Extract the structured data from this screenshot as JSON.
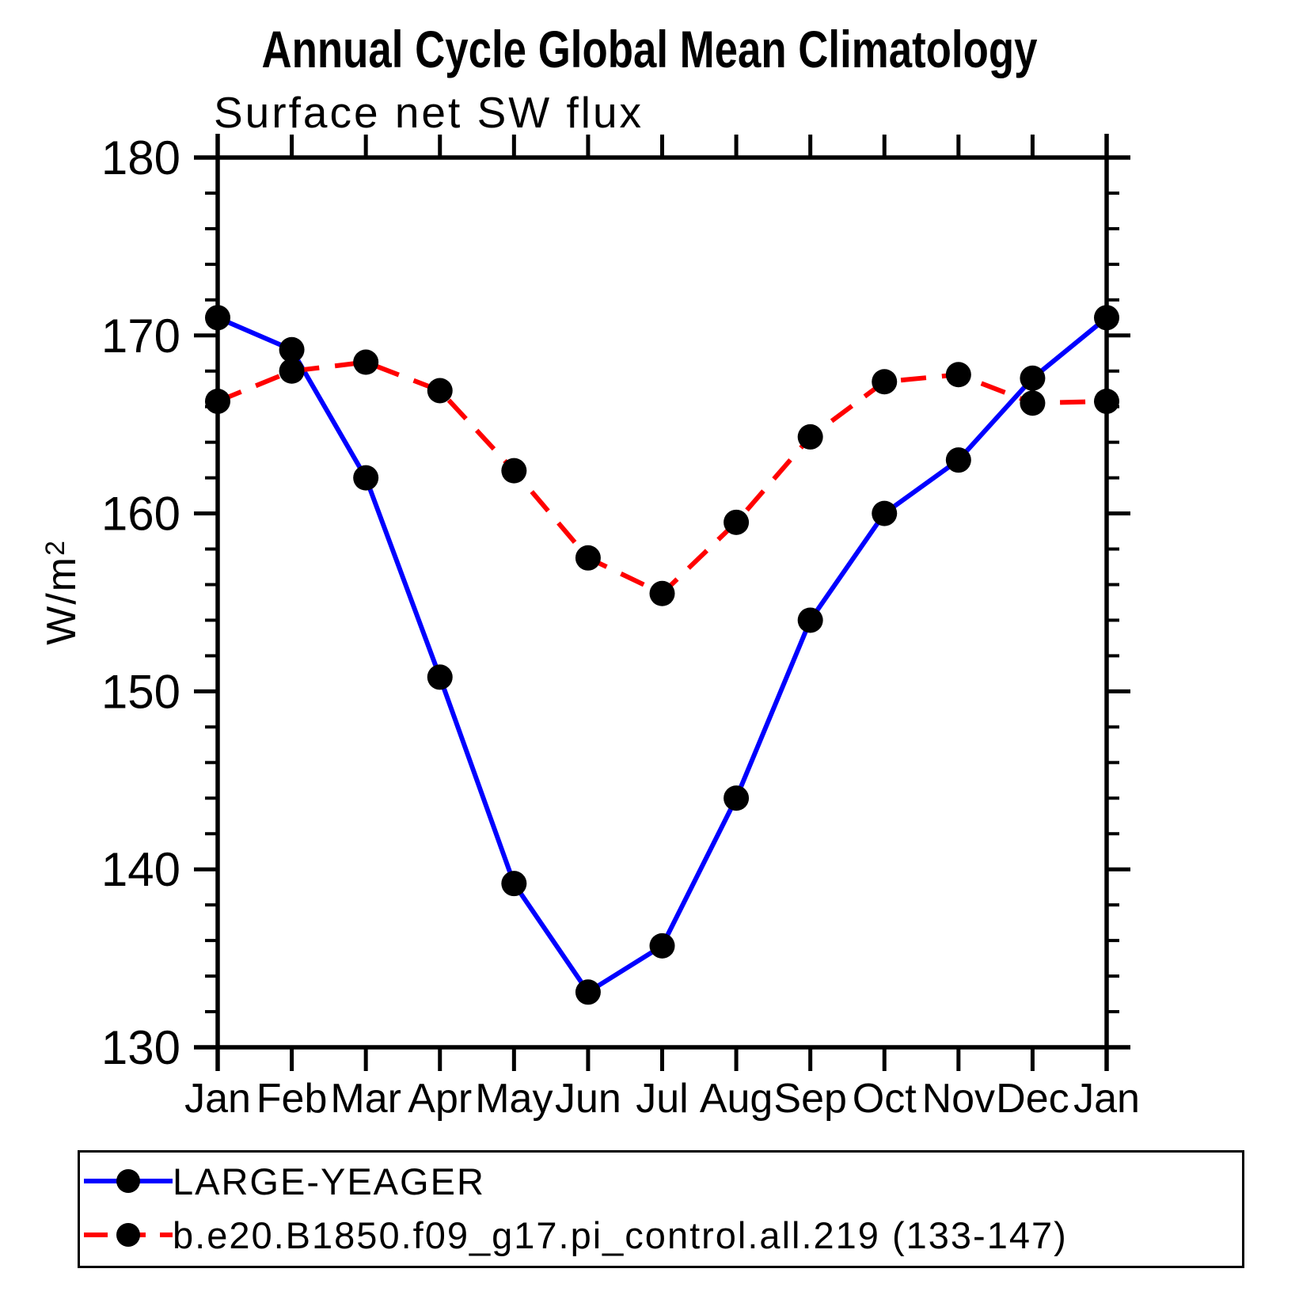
{
  "title": "Annual Cycle Global Mean Climatology",
  "subtitle": "Surface net SW flux",
  "y_axis_label": {
    "base": "W/m",
    "sup": "2"
  },
  "colors": {
    "background": "#ffffff",
    "axis": "#000000",
    "marker": "#000000",
    "series_blue": "#0000ff",
    "series_red": "#ff0000"
  },
  "chart_data": {
    "type": "line",
    "title": "Annual Cycle Global Mean Climatology",
    "subtitle": "Surface net SW flux",
    "xlabel": "",
    "ylabel": "W/m²",
    "ylim": [
      130,
      180
    ],
    "y_major_ticks": [
      130,
      140,
      150,
      160,
      170,
      180
    ],
    "y_minor_step": 2,
    "grid": false,
    "legend_position": "bottom",
    "marker_color": "#000000",
    "x_tick_labels": [
      "Jan",
      "Feb",
      "Mar",
      "Apr",
      "May",
      "Jun",
      "Jul",
      "Aug",
      "Sep",
      "Oct",
      "Nov",
      "Dec",
      "Jan"
    ],
    "series": [
      {
        "id": "large-yeager",
        "name": "LARGE-YEAGER",
        "color": "#0000ff",
        "style": "solid",
        "marker": "circle",
        "values": [
          171.0,
          169.2,
          162.0,
          150.8,
          139.2,
          133.1,
          135.7,
          144.0,
          154.0,
          160.0,
          163.0,
          167.6,
          171.0
        ]
      },
      {
        "id": "model-b-e20-b1850",
        "name": "b.e20.B1850.f09_g17.pi_control.all.219 (133-147)",
        "color": "#ff0000",
        "style": "dashed",
        "marker": "circle",
        "values": [
          166.3,
          168.0,
          168.5,
          166.9,
          162.4,
          157.5,
          155.5,
          159.5,
          164.3,
          167.4,
          167.8,
          166.2,
          166.3
        ]
      }
    ]
  }
}
